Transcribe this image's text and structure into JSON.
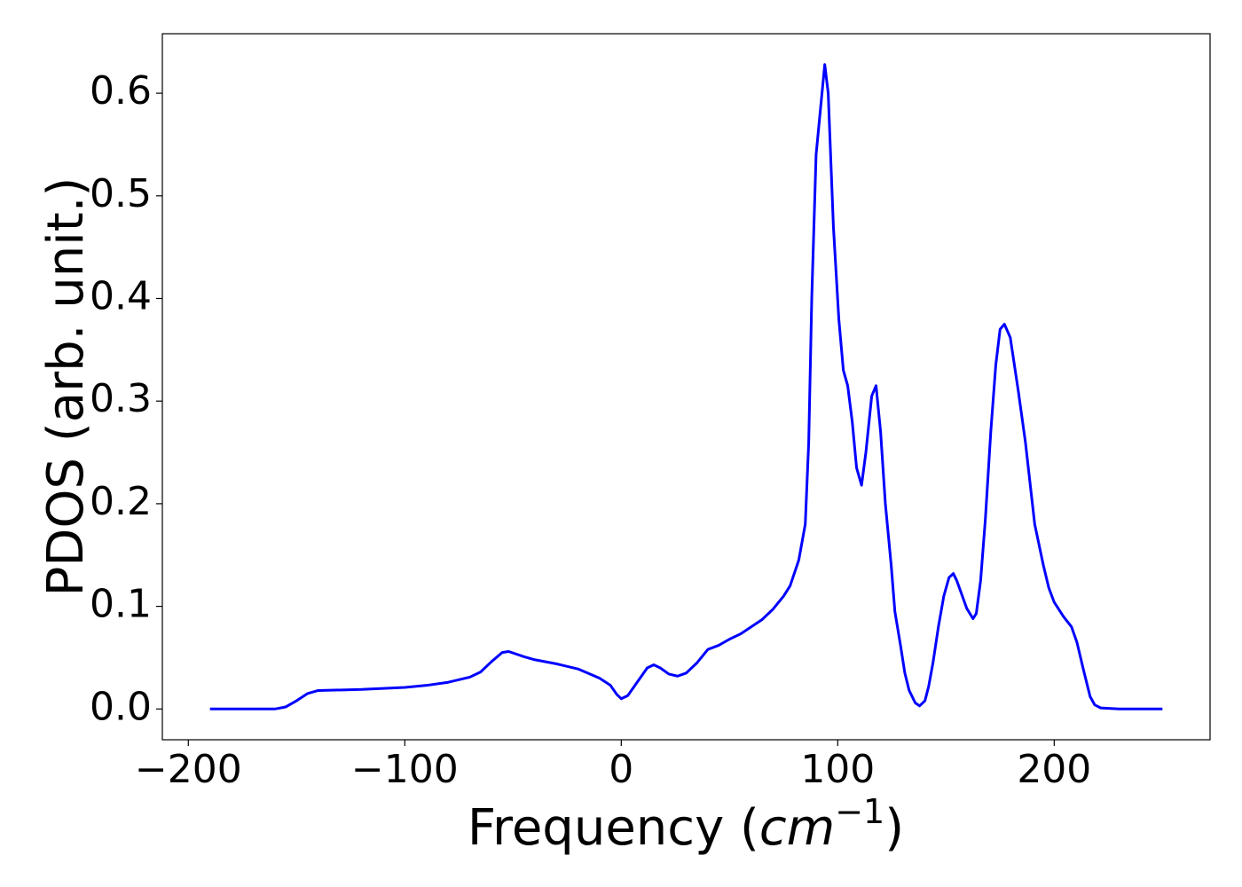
{
  "chart_data": {
    "type": "line",
    "y_label": "PDOS (arb. unit.)",
    "x_label": [
      "Frequency (",
      "cm",
      "−1",
      ")"
    ],
    "xlim": [
      -212,
      272
    ],
    "ylim": [
      -0.03,
      0.658
    ],
    "xticks": [
      {
        "value": -200,
        "label": "−200"
      },
      {
        "value": -100,
        "label": "−100"
      },
      0,
      100,
      200
    ],
    "yticks": [
      {
        "value": 0,
        "label": "0.0"
      },
      0.1,
      0.2,
      0.3,
      0.4,
      0.5,
      0.6
    ],
    "grid": false,
    "series": [
      {
        "color": "#0000ff",
        "x": [
          -190,
          -170,
          -160,
          -155,
          -150,
          -145,
          -140,
          -120,
          -100,
          -90,
          -80,
          -70,
          -65,
          -60,
          -55,
          -52,
          -45,
          -40,
          -30,
          -20,
          -10,
          -5,
          -2,
          0,
          3,
          8,
          12,
          15,
          18,
          22,
          26,
          30,
          35,
          40,
          45,
          50,
          55,
          60,
          65,
          70,
          75,
          78,
          82,
          85,
          86.6,
          88,
          90,
          94,
          95.6,
          98,
          100.5,
          102.6,
          104.6,
          106.7,
          108.7,
          111,
          113,
          115.7,
          117.7,
          119.8,
          122,
          124.7,
          126.4,
          129,
          131,
          133,
          135.8,
          137.8,
          140.3,
          142,
          144,
          146.5,
          149,
          151.4,
          153.4,
          155,
          159.6,
          162.5,
          164,
          166,
          168.2,
          170.7,
          173,
          175,
          177,
          179.7,
          183.4,
          186.7,
          191,
          195,
          197.5,
          200,
          204.3,
          208,
          210.5,
          213.3,
          216.6,
          218.7,
          221.5,
          230,
          250
        ],
        "values": [
          0,
          0,
          0,
          0.002,
          0.008,
          0.015,
          0.018,
          0.019,
          0.021,
          0.023,
          0.026,
          0.031,
          0.036,
          0.046,
          0.055,
          0.056,
          0.051,
          0.048,
          0.044,
          0.039,
          0.03,
          0.023,
          0.014,
          0.01,
          0.013,
          0.028,
          0.04,
          0.043,
          0.04,
          0.034,
          0.032,
          0.035,
          0.045,
          0.058,
          0.062,
          0.068,
          0.073,
          0.08,
          0.087,
          0.097,
          0.11,
          0.12,
          0.145,
          0.18,
          0.26,
          0.4,
          0.54,
          0.628,
          0.6,
          0.47,
          0.38,
          0.33,
          0.315,
          0.28,
          0.235,
          0.218,
          0.25,
          0.305,
          0.315,
          0.27,
          0.2,
          0.14,
          0.095,
          0.062,
          0.035,
          0.018,
          0.006,
          0.003,
          0.008,
          0.022,
          0.045,
          0.08,
          0.11,
          0.128,
          0.132,
          0.125,
          0.098,
          0.088,
          0.093,
          0.125,
          0.185,
          0.27,
          0.335,
          0.37,
          0.375,
          0.362,
          0.31,
          0.26,
          0.18,
          0.14,
          0.118,
          0.104,
          0.09,
          0.08,
          0.065,
          0.04,
          0.012,
          0.004,
          0.001,
          0,
          0
        ]
      }
    ]
  }
}
